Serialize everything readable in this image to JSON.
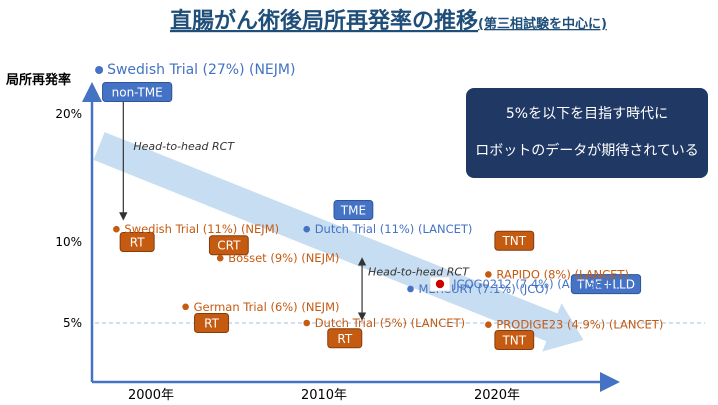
{
  "title": "直腸がん術後局所再発率の推移",
  "subtitle": "(第三相試験を中心に)",
  "ylabel": "局所再発率",
  "callout": {
    "line1": "5%を以下を目指す時代に",
    "line2": "ロボットのデータが期待されている"
  },
  "colors": {
    "title": "#1f4e79",
    "tme_series": "#4472c4",
    "rt_series": "#c55a11",
    "callout_bg": "#1f3864",
    "axis": "#4472c4",
    "trend_arrow": "#bdd7ee",
    "flag_red": "#cc0000"
  },
  "chart_data": {
    "type": "scatter",
    "ylabel": "局所再発率",
    "yticks": [
      {
        "value": 20,
        "label": "20%"
      },
      {
        "value": 10,
        "label": "10%"
      },
      {
        "value": 5,
        "label": "5%"
      }
    ],
    "xticks": [
      {
        "value": 2000,
        "label": "2000年"
      },
      {
        "value": 2010,
        "label": "2010年"
      },
      {
        "value": 2020,
        "label": "2020年"
      }
    ],
    "reference_line": {
      "y": 5
    },
    "trend_arrow": {
      "from": [
        1997,
        17.5
      ],
      "to": [
        2025,
        4.0
      ]
    },
    "points": [
      {
        "label": "Swedish Trial (27%) (NEJM)",
        "x": 1997.0,
        "y": 27.0,
        "group": "tme"
      },
      {
        "label": "Swedish Trial (11%) (NEJM)",
        "x": 1998.0,
        "y": 11.0,
        "group": "rt"
      },
      {
        "label": "Dutch Trial (11%) (LANCET)",
        "x": 2009.0,
        "y": 11.0,
        "group": "tme"
      },
      {
        "label": "Bosset (9%) (NEJM)",
        "x": 2004.0,
        "y": 9.0,
        "group": "rt"
      },
      {
        "label": "German Trial (6%) (NEJM)",
        "x": 2002.0,
        "y": 6.0,
        "group": "rt"
      },
      {
        "label": "Dutch Trial (5%) (LANCET)",
        "x": 2009.0,
        "y": 5.0,
        "group": "rt"
      },
      {
        "label": "RAPIDO (8%) (LANCET)",
        "x": 2019.5,
        "y": 8.0,
        "group": "rt"
      },
      {
        "label": "JCOG0212 (7.4%) (Ann Surg)",
        "x": 2017.0,
        "y": 7.4,
        "group": "tme"
      },
      {
        "label": "MERCURY (7.1%) (JCO)",
        "x": 2015.0,
        "y": 7.1,
        "group": "tme"
      },
      {
        "label": "PRODIGE23 (4.9%) (LANCET)",
        "x": 2019.5,
        "y": 4.9,
        "group": "rt"
      }
    ],
    "tags": [
      {
        "text": "non-TME",
        "x": 1999.2,
        "y": 23.5,
        "style": "blue"
      },
      {
        "text": "RT",
        "x": 1999.2,
        "y": 10.0,
        "style": "orange"
      },
      {
        "text": "TME",
        "x": 2011.7,
        "y": 12.5,
        "style": "blue"
      },
      {
        "text": "CRT",
        "x": 2004.5,
        "y": 9.8,
        "style": "orange"
      },
      {
        "text": "RT",
        "x": 2003.5,
        "y": 5.0,
        "style": "orange"
      },
      {
        "text": "RT",
        "x": 2011.2,
        "y": 4.1,
        "style": "orange"
      },
      {
        "text": "TNT",
        "x": 2021.0,
        "y": 10.1,
        "style": "orange"
      },
      {
        "text": "TME+LLD",
        "x": 2026.3,
        "y": 7.4,
        "style": "blue"
      },
      {
        "text": "TNT",
        "x": 2021.0,
        "y": 4.0,
        "style": "orange"
      }
    ],
    "comparisons": [
      {
        "label": "Head-to-head RCT",
        "x": 1998.4,
        "y_top": 23.0,
        "y_bottom": 12.0
      },
      {
        "label": "Head-to-head RCT",
        "x": 2012.2,
        "y_top": 8.8,
        "y_bottom": 5.4
      }
    ]
  }
}
